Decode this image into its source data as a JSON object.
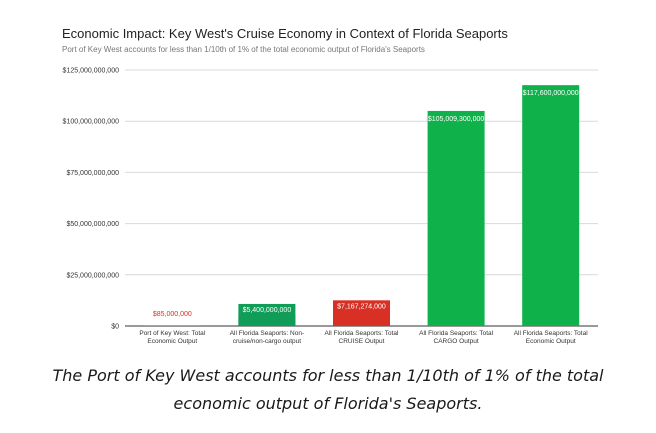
{
  "chart_data": {
    "type": "bar",
    "title": "Economic Impact: Key West's Cruise Economy in Context of Florida Seaports",
    "subtitle": "Port of Key West accounts for less than 1/10th of 1% of the total economic output of Florida's Seaports",
    "categories": [
      [
        "Port of Key West: Total",
        "Economic Output"
      ],
      [
        "All Florida Seaports: Non-",
        "cruise/non-cargo output"
      ],
      [
        "All Florida Seaports: Total",
        "CRUISE Output"
      ],
      [
        "All Florida Seaports: Total",
        "CARGO Output"
      ],
      [
        "All Florida Seaports: Total",
        "Economic Output"
      ]
    ],
    "values": [
      85000000,
      5400000000,
      7167274000,
      105009300000,
      117600000000
    ],
    "data_labels": [
      "$85,000,000",
      "$5,400,000,000",
      "$7,167,274,000",
      "$105,009,300,000",
      "$117,600,000,000"
    ],
    "bar_colors": [
      "#d93025",
      "#0f9d58",
      "#d93025",
      "#0fb14a",
      "#0fb14a"
    ],
    "ylim": [
      0,
      125000000000
    ],
    "y_ticks": [
      0,
      25000000000,
      50000000000,
      75000000000,
      100000000000,
      125000000000
    ],
    "y_tick_labels": [
      "$0",
      "$25,000,000,000",
      "$50,000,000,000",
      "$75,000,000,000",
      "$100,000,000,000",
      "$125,000,000,000"
    ],
    "grid": true,
    "legend": "none"
  },
  "caption": {
    "line1": "The Port of Key West accounts for less than 1/10th of 1% of the total",
    "line2": "economic output of Florida's Seaports."
  }
}
